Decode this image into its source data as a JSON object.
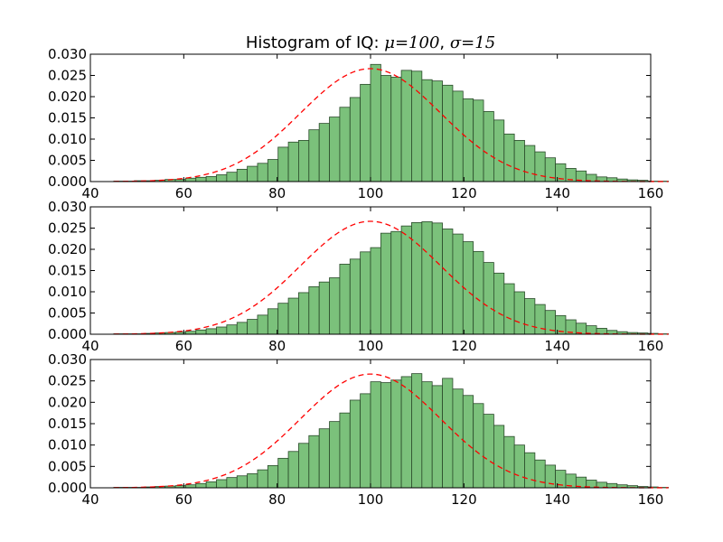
{
  "chart_data": [
    {
      "type": "bar",
      "title": "Histogram of IQ: μ=100, σ=15",
      "title_parts": {
        "prefix": "Histogram of IQ: ",
        "mu_symbol": "μ",
        "mu_value": "=100",
        "separator": ", ",
        "sigma_symbol": "σ",
        "sigma_value": "=15"
      },
      "xlabel": "",
      "ylabel": "",
      "xlim": [
        40,
        160
      ],
      "ylim": [
        0,
        0.03
      ],
      "xticks": [
        "40",
        "60",
        "80",
        "100",
        "120",
        "140",
        "160"
      ],
      "yticks": [
        "0.000",
        "0.005",
        "0.010",
        "0.015",
        "0.020",
        "0.025",
        "0.030"
      ],
      "bin_start": 45,
      "bin_width": 2.2,
      "values": [
        0.0001,
        0.0001,
        0.0002,
        0.0002,
        0.0003,
        0.0005,
        0.0005,
        0.0008,
        0.001,
        0.0012,
        0.0016,
        0.0022,
        0.0029,
        0.0036,
        0.0043,
        0.0052,
        0.0081,
        0.0093,
        0.0097,
        0.0122,
        0.0137,
        0.0152,
        0.0175,
        0.0198,
        0.0229,
        0.0276,
        0.025,
        0.0246,
        0.0262,
        0.026,
        0.024,
        0.0237,
        0.0227,
        0.0213,
        0.0195,
        0.0192,
        0.0165,
        0.0145,
        0.0112,
        0.0097,
        0.0085,
        0.007,
        0.0056,
        0.0042,
        0.0031,
        0.0025,
        0.0017,
        0.0011,
        0.0009,
        0.0006,
        0.0004,
        0.0003,
        0.0001,
        0.0001
      ],
      "fit_curve": {
        "type": "normal",
        "mu": 100,
        "sigma": 15,
        "color": "#ff0000",
        "style": "dashed"
      },
      "bar_color": "#7bc17b",
      "grid": false
    },
    {
      "type": "bar",
      "title": "",
      "xlabel": "",
      "ylabel": "",
      "xlim": [
        40,
        160
      ],
      "ylim": [
        0,
        0.03
      ],
      "xticks": [
        "40",
        "60",
        "80",
        "100",
        "120",
        "140",
        "160"
      ],
      "yticks": [
        "0.000",
        "0.005",
        "0.010",
        "0.015",
        "0.020",
        "0.025",
        "0.030"
      ],
      "bin_start": 45,
      "bin_width": 2.2,
      "values": [
        0.0001,
        0.0001,
        0.0001,
        0.0002,
        0.0003,
        0.0004,
        0.0005,
        0.0007,
        0.001,
        0.0013,
        0.0017,
        0.0022,
        0.0028,
        0.0035,
        0.0045,
        0.006,
        0.0073,
        0.0085,
        0.0098,
        0.0112,
        0.0123,
        0.0133,
        0.0165,
        0.0177,
        0.0194,
        0.0204,
        0.0238,
        0.0242,
        0.0255,
        0.0263,
        0.0265,
        0.0262,
        0.0248,
        0.0236,
        0.0218,
        0.0195,
        0.0169,
        0.0144,
        0.0119,
        0.01,
        0.0084,
        0.007,
        0.0056,
        0.0044,
        0.0034,
        0.0026,
        0.002,
        0.0014,
        0.0009,
        0.0006,
        0.0004,
        0.0003,
        0.0002,
        0.0001
      ],
      "fit_curve": {
        "type": "normal",
        "mu": 100,
        "sigma": 15,
        "color": "#ff0000",
        "style": "dashed"
      },
      "bar_color": "#7bc17b",
      "grid": false
    },
    {
      "type": "bar",
      "title": "",
      "xlabel": "",
      "ylabel": "",
      "xlim": [
        40,
        160
      ],
      "ylim": [
        0,
        0.03
      ],
      "xticks": [
        "40",
        "60",
        "80",
        "100",
        "120",
        "140",
        "160"
      ],
      "yticks": [
        "0.000",
        "0.005",
        "0.010",
        "0.015",
        "0.020",
        "0.025",
        "0.030"
      ],
      "bin_start": 45,
      "bin_width": 2.2,
      "values": [
        0.0001,
        0.0001,
        0.0001,
        0.0002,
        0.0003,
        0.0004,
        0.0005,
        0.0007,
        0.001,
        0.0014,
        0.0019,
        0.0024,
        0.0028,
        0.0033,
        0.0042,
        0.0052,
        0.0069,
        0.0085,
        0.0104,
        0.0122,
        0.0138,
        0.0155,
        0.0175,
        0.0205,
        0.022,
        0.0248,
        0.0246,
        0.0252,
        0.026,
        0.0267,
        0.0248,
        0.0239,
        0.0256,
        0.0231,
        0.0216,
        0.0197,
        0.0172,
        0.0146,
        0.012,
        0.01,
        0.0082,
        0.0065,
        0.0053,
        0.0041,
        0.0032,
        0.0025,
        0.0018,
        0.0013,
        0.001,
        0.0007,
        0.0005,
        0.0003,
        0.0002,
        0.0001
      ],
      "fit_curve": {
        "type": "normal",
        "mu": 100,
        "sigma": 15,
        "color": "#ff0000",
        "style": "dashed"
      },
      "bar_color": "#7bc17b",
      "grid": false
    }
  ]
}
